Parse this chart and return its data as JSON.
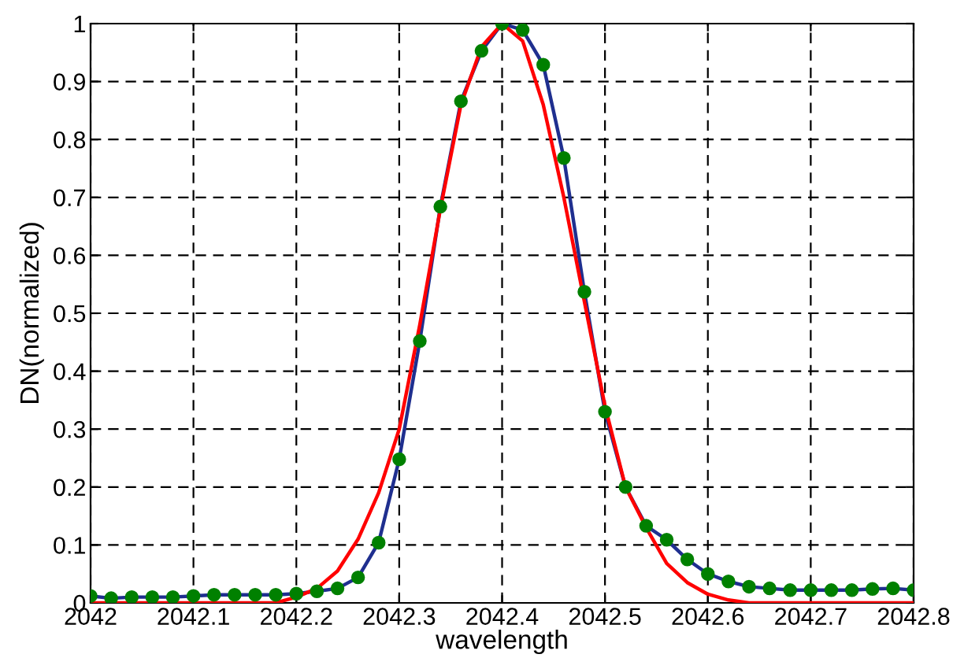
{
  "chart_data": {
    "type": "line",
    "xlabel": "wavelength",
    "ylabel": "DN(normalized)",
    "x": [
      2042.0,
      2042.02,
      2042.04,
      2042.06,
      2042.08,
      2042.1,
      2042.12,
      2042.14,
      2042.16,
      2042.18,
      2042.2,
      2042.22,
      2042.24,
      2042.26,
      2042.28,
      2042.3,
      2042.32,
      2042.34,
      2042.36,
      2042.38,
      2042.4,
      2042.42,
      2042.44,
      2042.46,
      2042.48,
      2042.5,
      2042.52,
      2042.54,
      2042.56,
      2042.58,
      2042.6,
      2042.62,
      2042.64,
      2042.66,
      2042.68,
      2042.7,
      2042.72,
      2042.74,
      2042.76,
      2042.78,
      2042.8
    ],
    "series": [
      {
        "color": "#1f2f8f",
        "marker": "none",
        "values": [
          0.012,
          0.008,
          0.01,
          0.01,
          0.01,
          0.012,
          0.014,
          0.014,
          0.014,
          0.014,
          0.016,
          0.02,
          0.025,
          0.044,
          0.104,
          0.248,
          0.452,
          0.684,
          0.866,
          0.953,
          1.0,
          0.989,
          0.929,
          0.768,
          0.537,
          0.33,
          0.2,
          0.133,
          0.109,
          0.075,
          0.05,
          0.037,
          0.028,
          0.025,
          0.022,
          0.022,
          0.022,
          0.022,
          0.024,
          0.025,
          0.022
        ]
      },
      {
        "type": "scatter",
        "color": "#008000",
        "marker": "circle",
        "values": [
          0.012,
          0.008,
          0.01,
          0.01,
          0.01,
          0.012,
          0.014,
          0.014,
          0.014,
          0.014,
          0.016,
          0.02,
          0.025,
          0.044,
          0.104,
          0.248,
          0.452,
          0.684,
          0.866,
          0.953,
          1.0,
          0.989,
          0.929,
          0.768,
          0.537,
          0.33,
          0.2,
          0.133,
          0.109,
          0.075,
          0.05,
          0.037,
          0.028,
          0.025,
          0.022,
          0.022,
          0.022,
          0.022,
          0.024,
          0.025,
          0.022
        ]
      },
      {
        "color": "#ff0000",
        "marker": "none",
        "values": [
          0,
          0,
          0,
          0,
          0,
          0,
          0,
          0,
          0,
          0,
          0.01,
          0.025,
          0.055,
          0.11,
          0.19,
          0.3,
          0.48,
          0.68,
          0.86,
          0.96,
          1.0,
          0.97,
          0.86,
          0.7,
          0.52,
          0.34,
          0.2,
          0.13,
          0.068,
          0.035,
          0.015,
          0.005,
          0,
          0,
          0,
          0,
          0,
          0,
          0,
          0,
          0
        ]
      }
    ],
    "xlim": [
      2042,
      2042.8
    ],
    "xticks": [
      2042,
      2042.1,
      2042.2,
      2042.3,
      2042.4,
      2042.5,
      2042.6,
      2042.7,
      2042.8
    ],
    "ylim": [
      0,
      1
    ],
    "yticks": [
      0,
      0.1,
      0.2,
      0.3,
      0.4,
      0.5,
      0.6,
      0.7,
      0.8,
      0.9,
      1
    ],
    "grid": true,
    "line_style": "solid"
  }
}
